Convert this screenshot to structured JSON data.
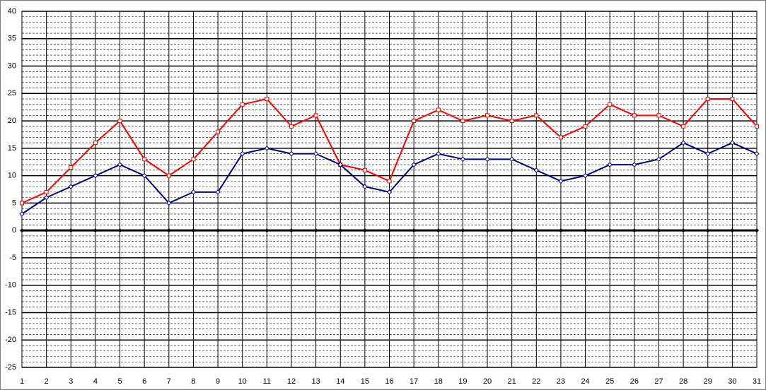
{
  "chart_data": {
    "type": "line",
    "x": [
      "1",
      "2",
      "3",
      "4",
      "5",
      "6",
      "7",
      "8",
      "9",
      "10",
      "11",
      "12",
      "13",
      "14",
      "15",
      "16",
      "17",
      "18",
      "19",
      "20",
      "21",
      "22",
      "23",
      "24",
      "25",
      "26",
      "27",
      "28",
      "29",
      "30",
      "31"
    ],
    "series": [
      {
        "color": "#ff0000",
        "marker": "square",
        "values": [
          5,
          7,
          11.5,
          16,
          20,
          13,
          10,
          13,
          18,
          23,
          24,
          19,
          21,
          12,
          11,
          9,
          20,
          22,
          20,
          21,
          20,
          21,
          17,
          19,
          23,
          21,
          21,
          19,
          24,
          24,
          19
        ]
      },
      {
        "color": "#000080",
        "marker": "diamond",
        "values": [
          3,
          6,
          8,
          10,
          12,
          10,
          5,
          7,
          7,
          14,
          15,
          14,
          14,
          12,
          8,
          7,
          12,
          14,
          13,
          13,
          13,
          11,
          9,
          10,
          12,
          12,
          13,
          16,
          14,
          16,
          14
        ]
      }
    ],
    "ylim": [
      -25,
      40
    ],
    "yticks": [
      -25,
      -20,
      -15,
      -10,
      -5,
      0,
      5,
      10,
      15,
      20,
      25,
      30,
      35,
      40
    ],
    "grid": true
  }
}
